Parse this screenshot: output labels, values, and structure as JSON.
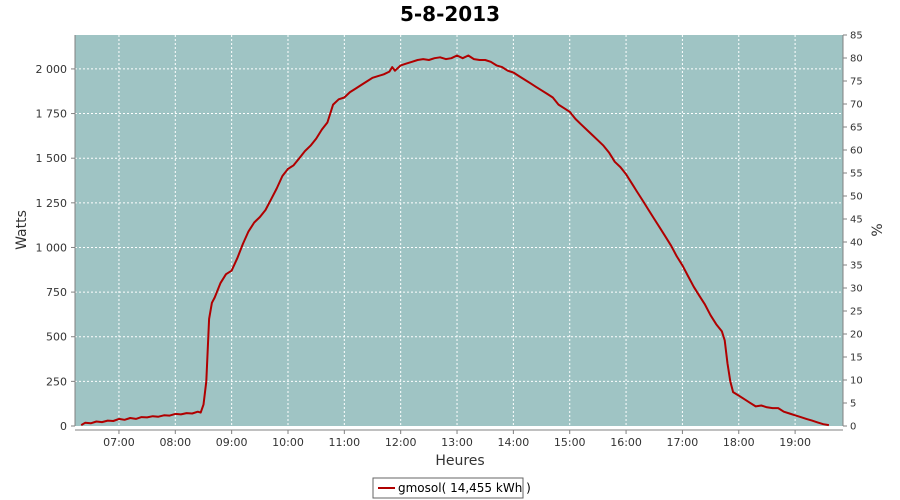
{
  "chart_data": {
    "type": "line",
    "title": "5-8-2013",
    "xlabel": "Heures",
    "ylabel": "Watts",
    "y2label": "%",
    "xlim": [
      6.22,
      19.85
    ],
    "ylim": [
      0,
      2190
    ],
    "y2lim": [
      0,
      85
    ],
    "x_ticks": [
      {
        "v": 7,
        "label": "07:00"
      },
      {
        "v": 8,
        "label": "08:00"
      },
      {
        "v": 9,
        "label": "09:00"
      },
      {
        "v": 10,
        "label": "10:00"
      },
      {
        "v": 11,
        "label": "11:00"
      },
      {
        "v": 12,
        "label": "12:00"
      },
      {
        "v": 13,
        "label": "13:00"
      },
      {
        "v": 14,
        "label": "14:00"
      },
      {
        "v": 15,
        "label": "15:00"
      },
      {
        "v": 16,
        "label": "16:00"
      },
      {
        "v": 17,
        "label": "17:00"
      },
      {
        "v": 18,
        "label": "18:00"
      },
      {
        "v": 19,
        "label": "19:00"
      }
    ],
    "y_ticks": [
      {
        "v": 0,
        "label": "0"
      },
      {
        "v": 250,
        "label": "250"
      },
      {
        "v": 500,
        "label": "500"
      },
      {
        "v": 750,
        "label": "750"
      },
      {
        "v": 1000,
        "label": "1 000"
      },
      {
        "v": 1250,
        "label": "1 250"
      },
      {
        "v": 1500,
        "label": "1 500"
      },
      {
        "v": 1750,
        "label": "1 750"
      },
      {
        "v": 2000,
        "label": "2 000"
      }
    ],
    "y2_ticks": [
      0,
      5,
      10,
      15,
      20,
      25,
      30,
      35,
      40,
      45,
      50,
      55,
      60,
      65,
      70,
      75,
      80,
      85
    ],
    "grid": true,
    "legend_position": "bottom-center",
    "colors": {
      "plot_bg": "#9fc4c4",
      "line": "#b00000",
      "grid": "#ffffff"
    },
    "series": [
      {
        "name": "gmosol( 14,455 kWh )",
        "x": [
          6.33,
          6.4,
          6.5,
          6.6,
          6.7,
          6.8,
          6.9,
          7.0,
          7.1,
          7.2,
          7.3,
          7.4,
          7.5,
          7.6,
          7.7,
          7.8,
          7.9,
          8.0,
          8.1,
          8.2,
          8.3,
          8.4,
          8.45,
          8.5,
          8.55,
          8.6,
          8.65,
          8.7,
          8.8,
          8.9,
          9.0,
          9.1,
          9.2,
          9.3,
          9.4,
          9.5,
          9.6,
          9.7,
          9.8,
          9.9,
          10.0,
          10.1,
          10.2,
          10.3,
          10.4,
          10.5,
          10.6,
          10.7,
          10.8,
          10.9,
          11.0,
          11.1,
          11.2,
          11.3,
          11.4,
          11.5,
          11.6,
          11.7,
          11.8,
          11.85,
          11.9,
          12.0,
          12.1,
          12.2,
          12.3,
          12.4,
          12.5,
          12.6,
          12.7,
          12.8,
          12.9,
          13.0,
          13.1,
          13.2,
          13.3,
          13.4,
          13.5,
          13.6,
          13.7,
          13.8,
          13.9,
          14.0,
          14.1,
          14.2,
          14.3,
          14.4,
          14.5,
          14.6,
          14.7,
          14.8,
          14.9,
          15.0,
          15.1,
          15.2,
          15.3,
          15.4,
          15.5,
          15.6,
          15.7,
          15.8,
          15.9,
          16.0,
          16.1,
          16.2,
          16.3,
          16.4,
          16.5,
          16.6,
          16.7,
          16.8,
          16.9,
          17.0,
          17.1,
          17.2,
          17.3,
          17.4,
          17.5,
          17.6,
          17.7,
          17.75,
          17.8,
          17.85,
          17.9,
          18.0,
          18.1,
          18.2,
          18.3,
          18.4,
          18.5,
          18.6,
          18.7,
          18.8,
          18.9,
          19.0,
          19.1,
          19.2,
          19.3,
          19.4,
          19.5,
          19.6
        ],
        "values": [
          5,
          18,
          15,
          25,
          22,
          30,
          28,
          40,
          35,
          45,
          40,
          50,
          48,
          55,
          52,
          60,
          58,
          68,
          65,
          72,
          70,
          80,
          75,
          120,
          250,
          600,
          690,
          720,
          800,
          850,
          870,
          940,
          1020,
          1090,
          1140,
          1170,
          1210,
          1270,
          1330,
          1400,
          1440,
          1460,
          1500,
          1540,
          1570,
          1610,
          1660,
          1700,
          1800,
          1830,
          1840,
          1870,
          1890,
          1910,
          1930,
          1950,
          1960,
          1970,
          1985,
          2010,
          1990,
          2020,
          2030,
          2040,
          2050,
          2055,
          2050,
          2060,
          2065,
          2055,
          2060,
          2075,
          2060,
          2075,
          2055,
          2050,
          2050,
          2040,
          2020,
          2010,
          1990,
          1980,
          1960,
          1940,
          1920,
          1900,
          1880,
          1860,
          1840,
          1800,
          1780,
          1760,
          1720,
          1690,
          1660,
          1630,
          1600,
          1570,
          1530,
          1480,
          1450,
          1410,
          1360,
          1310,
          1260,
          1210,
          1160,
          1110,
          1060,
          1010,
          950,
          900,
          840,
          780,
          730,
          680,
          620,
          570,
          530,
          480,
          350,
          250,
          190,
          170,
          150,
          130,
          110,
          115,
          105,
          100,
          100,
          80,
          70,
          60,
          50,
          40,
          30,
          20,
          10,
          5
        ]
      }
    ]
  }
}
